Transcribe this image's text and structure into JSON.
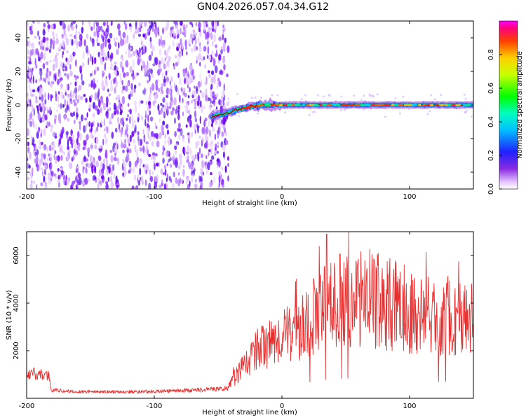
{
  "title": "GN04.2026.057.04.34.G12",
  "colors": {
    "signal": "#e83030",
    "axis": "#000000",
    "spec_low": "#8a2be2"
  },
  "chart_data": [
    {
      "type": "heatmap",
      "xlabel": "Height of straight line (km)",
      "ylabel": "Frequency (Hz)",
      "xlim": [
        -200,
        150
      ],
      "ylim": [
        -50,
        50
      ],
      "x_ticks": [
        -200,
        -100,
        0,
        100
      ],
      "y_ticks": [
        -40,
        -20,
        0,
        20,
        40
      ],
      "colorbar": {
        "label": "Normalized spectral amplitude",
        "range": [
          0.0,
          1.0
        ],
        "ticks": [
          0.0,
          0.2,
          0.4,
          0.6,
          0.8
        ]
      },
      "noise_region_x": [
        -200,
        -42
      ],
      "signal_track": [
        {
          "x": -55,
          "y": -7
        },
        {
          "x": -45,
          "y": -5
        },
        {
          "x": -35,
          "y": -3
        },
        {
          "x": -25,
          "y": -1
        },
        {
          "x": -15,
          "y": 0
        },
        {
          "x": 0,
          "y": 0
        },
        {
          "x": 50,
          "y": 0
        },
        {
          "x": 100,
          "y": 0
        },
        {
          "x": 150,
          "y": 0
        }
      ]
    },
    {
      "type": "line",
      "xlabel": "Height of straight line (km)",
      "ylabel": "SNR (10 * v/v)",
      "xlim": [
        -200,
        150
      ],
      "ylim": [
        0,
        7000
      ],
      "x_ticks": [
        -200,
        -100,
        0,
        100
      ],
      "y_ticks": [
        2000,
        4000,
        6000
      ],
      "series": [
        {
          "x": [
            -200,
            -190,
            -182,
            -181,
            -170,
            -150,
            -120,
            -100,
            -80,
            -60,
            -50,
            -42,
            -38,
            -34,
            -30,
            -25,
            -20,
            -15,
            -10,
            -5,
            0,
            5,
            10,
            15,
            20,
            25,
            30,
            35,
            40,
            45,
            50,
            60,
            70,
            80,
            90,
            100,
            110,
            120,
            130,
            140,
            150
          ],
          "y": [
            1050,
            1000,
            950,
            350,
            300,
            280,
            270,
            290,
            320,
            360,
            400,
            420,
            900,
            1100,
            1300,
            1700,
            2000,
            2200,
            2300,
            2400,
            2600,
            2700,
            2800,
            3100,
            3300,
            3500,
            3700,
            3900,
            4100,
            4100,
            4200,
            4100,
            4200,
            4000,
            3900,
            3700,
            3500,
            3400,
            3500,
            3300,
            3300
          ]
        }
      ],
      "peak": {
        "x": 35,
        "y": 6900
      }
    }
  ]
}
